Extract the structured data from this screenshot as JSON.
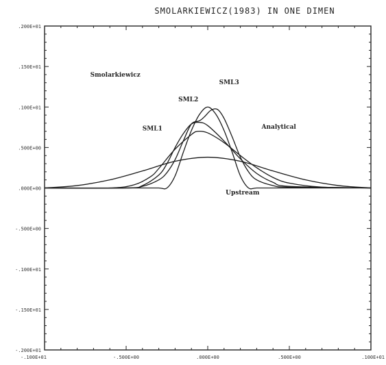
{
  "chart_data": {
    "type": "line",
    "title": "SMOLARKIEWICZ(1983) IN ONE DIMEN",
    "xlabel": "",
    "ylabel": "",
    "xlim": [
      -1.0,
      1.0
    ],
    "ylim": [
      -0.2,
      0.2
    ],
    "grid": false,
    "x_ticks": [
      {
        "value": -1.0,
        "label": "-.100E+01"
      },
      {
        "value": -0.5,
        "label": "-.500E+00"
      },
      {
        "value": 0.0,
        "label": ".000E+00"
      },
      {
        "value": 0.5,
        "label": ".500E+00"
      },
      {
        "value": 1.0,
        "label": ".100E+01"
      }
    ],
    "y_ticks": [
      {
        "value": 0.2,
        "label": ".200E+01"
      },
      {
        "value": 0.15,
        "label": ".150E+01"
      },
      {
        "value": 0.1,
        "label": ".100E+01"
      },
      {
        "value": 0.05,
        "label": ".500E+00"
      },
      {
        "value": 0.0,
        "label": ".000E+00"
      },
      {
        "value": -0.05,
        "label": "-.500E+00"
      },
      {
        "value": -0.1,
        "label": "-.100E+01"
      },
      {
        "value": -0.15,
        "label": "-.150E+01"
      },
      {
        "value": -0.2,
        "label": "-.200E+01"
      }
    ],
    "annotations": [
      {
        "text": "Smolarkiewicz",
        "x": -0.72,
        "y": 0.1375
      },
      {
        "text": "SML3",
        "x": 0.07,
        "y": 0.128
      },
      {
        "text": "SML2",
        "x": -0.18,
        "y": 0.107
      },
      {
        "text": "SML1",
        "x": -0.4,
        "y": 0.071
      },
      {
        "text": "Analytical",
        "x": 0.33,
        "y": 0.073
      },
      {
        "text": "Upstream",
        "x": 0.11,
        "y": -0.008
      }
    ],
    "series": [
      {
        "name": "Analytical",
        "x": [
          -1.0,
          -0.5,
          -0.4,
          -0.3,
          -0.25,
          -0.2,
          -0.15,
          -0.1,
          -0.05,
          0.0,
          0.05,
          0.1,
          0.15,
          0.2,
          0.25,
          0.3,
          0.4,
          0.5,
          1.0
        ],
        "y": [
          0.0,
          0.0,
          0.0,
          0.0,
          0.0,
          0.015,
          0.044,
          0.071,
          0.091,
          0.1,
          0.091,
          0.071,
          0.044,
          0.015,
          0.0,
          0.0,
          0.0,
          0.0,
          0.0
        ]
      },
      {
        "name": "Upstream",
        "x": [
          -1.0,
          -0.8,
          -0.6,
          -0.4,
          -0.2,
          0.0,
          0.2,
          0.4,
          0.6,
          0.8,
          1.0
        ],
        "y": [
          0.0,
          0.003,
          0.01,
          0.021,
          0.033,
          0.038,
          0.033,
          0.021,
          0.01,
          0.003,
          0.0
        ]
      },
      {
        "name": "SML1",
        "x": [
          -1.0,
          -0.6,
          -0.45,
          -0.35,
          -0.3,
          -0.2,
          -0.1,
          -0.06,
          0.0,
          0.1,
          0.2,
          0.3,
          0.4,
          0.5,
          0.7,
          1.0
        ],
        "y": [
          0.0,
          0.0,
          0.004,
          0.014,
          0.024,
          0.048,
          0.066,
          0.07,
          0.068,
          0.056,
          0.04,
          0.025,
          0.013,
          0.006,
          0.001,
          0.0
        ]
      },
      {
        "name": "SML2",
        "x": [
          -1.0,
          -0.5,
          -0.4,
          -0.3,
          -0.25,
          -0.2,
          -0.15,
          -0.1,
          -0.05,
          0.0,
          0.1,
          0.2,
          0.3,
          0.4,
          0.5,
          1.0
        ],
        "y": [
          0.0,
          0.0,
          0.003,
          0.016,
          0.03,
          0.05,
          0.067,
          0.079,
          0.081,
          0.077,
          0.058,
          0.036,
          0.018,
          0.007,
          0.002,
          0.0
        ]
      },
      {
        "name": "SML3",
        "x": [
          -1.0,
          -0.5,
          -0.4,
          -0.3,
          -0.25,
          -0.2,
          -0.15,
          -0.1,
          -0.05,
          -0.02,
          0.02,
          0.06,
          0.1,
          0.15,
          0.2,
          0.25,
          0.3,
          0.4,
          0.5,
          1.0
        ],
        "y": [
          0.0,
          0.0,
          0.002,
          0.01,
          0.019,
          0.035,
          0.058,
          0.079,
          0.083,
          0.088,
          0.096,
          0.097,
          0.086,
          0.063,
          0.038,
          0.02,
          0.01,
          0.003,
          0.001,
          0.0
        ]
      }
    ]
  }
}
